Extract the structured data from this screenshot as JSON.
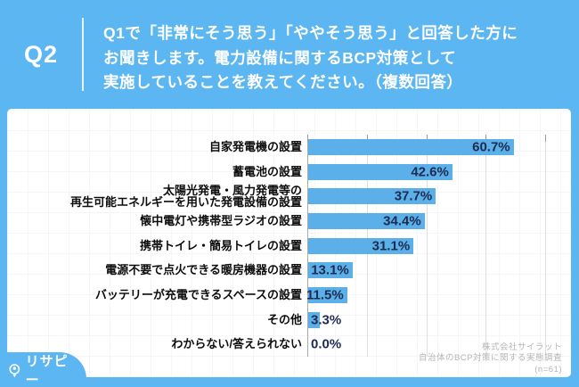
{
  "header": {
    "q_label": "Q2",
    "question_lines": [
      "Q1で「非常にそう思う」「ややそう思う」と回答した方に",
      "お聞きします。電力設備に関するBCP対策として",
      "実施していることを教えてください。（複数回答）"
    ]
  },
  "chart_data": {
    "type": "bar",
    "orientation": "horizontal",
    "categories": [
      "自家発電機の設置",
      "蓄電池の設置",
      [
        "太陽光発電・風力発電等の",
        "再生可能エネルギーを用いた発電設備の設置"
      ],
      "懐中電灯や携帯型ラジオの設置",
      "携帯トイレ・簡易トイレの設置",
      "電源不要で点火できる暖房機器の設置",
      "バッテリーが充電できるスペースの設置",
      "その他",
      "わからない/答えられない"
    ],
    "values": [
      60.7,
      42.6,
      37.7,
      34.4,
      31.1,
      13.1,
      11.5,
      3.3,
      0.0
    ],
    "value_labels": [
      "60.7%",
      "42.6%",
      "37.7%",
      "34.4%",
      "31.1%",
      "13.1%",
      "11.5%",
      "3.3%",
      "0.0%"
    ],
    "xlim": [
      0,
      70
    ],
    "gridline_values": [
      17.5,
      35,
      52.5,
      70
    ],
    "grid_on": true,
    "bar_color": "#5BB0EA",
    "value_text_color": "#1D2B50",
    "inside_label_threshold": 10
  },
  "attribution": {
    "lines": [
      "株式会社サイラット",
      "自治体のBCP対策に関する実態調査",
      "(n=61)"
    ]
  },
  "logo": {
    "text": "リサピー",
    "suffix": "."
  },
  "colors": {
    "background_blue": "#5CB6F1",
    "card_white": "#FFFFFF",
    "header_text": "#FFFFFF",
    "category_text": "#0D0D0D",
    "attribution_gray": "#B5B5B5"
  }
}
